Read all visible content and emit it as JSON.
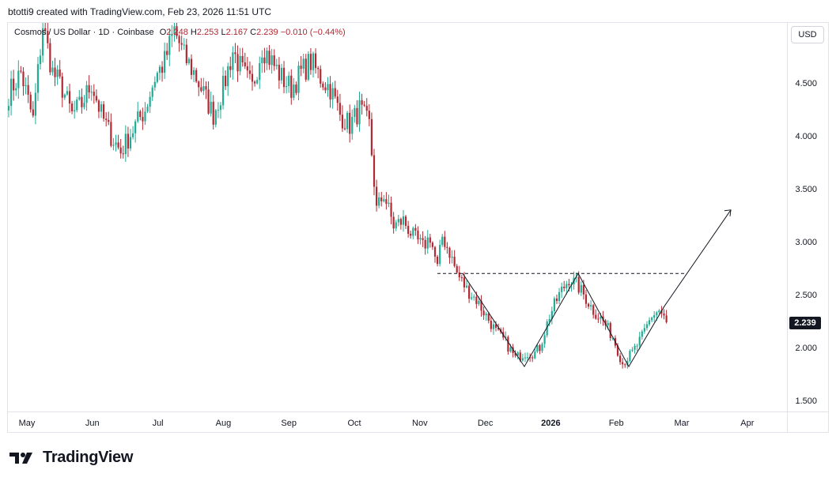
{
  "header": {
    "attribution": "btotti9 created with TradingView.com, Feb 23, 2026 11:51 UTC"
  },
  "legend": {
    "symbol": "Cosmos / US Dollar · 1D · Coinbase",
    "open_label": "O",
    "open": "2.248",
    "high_label": "H",
    "high": "2.253",
    "low_label": "L",
    "low": "2.167",
    "close_label": "C",
    "close": "2.239",
    "change": "−0.010 (−0.44%)"
  },
  "currency_button": "USD",
  "last_price": "2.239",
  "brand": {
    "name": "TradingView"
  },
  "colors": {
    "up": "#22ab94",
    "down": "#b22833",
    "axis_text": "#131722",
    "drawing": "#131722"
  },
  "chart_data": {
    "type": "candlestick",
    "title": "Cosmos / US Dollar · 1D · Coinbase",
    "price_axis": {
      "ticks": [
        1.5,
        2.0,
        2.5,
        3.0,
        3.5,
        4.0,
        4.5
      ],
      "tick_labels": [
        "1.500",
        "2.000",
        "2.500",
        "3.000",
        "3.500",
        "4.000",
        "4.500"
      ]
    },
    "time_axis": {
      "labels": [
        "May",
        "Jun",
        "Jul",
        "Aug",
        "Sep",
        "Oct",
        "Nov",
        "Dec",
        "2026",
        "Feb",
        "Mar",
        "Apr"
      ],
      "bold": [
        "2026"
      ]
    },
    "anchors": [
      [
        0,
        4.4
      ],
      [
        5,
        4.6
      ],
      [
        10,
        4.15
      ],
      [
        14,
        5.05
      ],
      [
        18,
        4.6
      ],
      [
        22,
        4.45
      ],
      [
        26,
        4.2
      ],
      [
        30,
        4.3
      ],
      [
        34,
        4.5
      ],
      [
        38,
        4.2
      ],
      [
        42,
        4.0
      ],
      [
        46,
        3.85
      ],
      [
        52,
        4.1
      ],
      [
        56,
        4.25
      ],
      [
        60,
        4.55
      ],
      [
        64,
        4.7
      ],
      [
        68,
        5.0
      ],
      [
        72,
        4.75
      ],
      [
        76,
        4.6
      ],
      [
        80,
        4.4
      ],
      [
        84,
        4.2
      ],
      [
        88,
        4.45
      ],
      [
        92,
        4.8
      ],
      [
        96,
        4.6
      ],
      [
        100,
        4.45
      ],
      [
        104,
        4.85
      ],
      [
        108,
        4.7
      ],
      [
        112,
        4.55
      ],
      [
        116,
        4.45
      ],
      [
        120,
        4.6
      ],
      [
        124,
        4.7
      ],
      [
        128,
        4.55
      ],
      [
        132,
        4.45
      ],
      [
        136,
        4.2
      ],
      [
        140,
        4.1
      ],
      [
        144,
        4.25
      ],
      [
        148,
        4.1
      ],
      [
        151,
        3.3
      ],
      [
        154,
        3.45
      ],
      [
        158,
        3.15
      ],
      [
        162,
        3.2
      ],
      [
        166,
        3.05
      ],
      [
        170,
        2.95
      ],
      [
        173,
        3.05
      ],
      [
        176,
        2.75
      ],
      [
        178,
        3.05
      ],
      [
        181,
        2.9
      ],
      [
        184,
        2.7
      ],
      [
        188,
        2.55
      ],
      [
        192,
        2.45
      ],
      [
        196,
        2.3
      ],
      [
        200,
        2.15
      ],
      [
        204,
        2.05
      ],
      [
        208,
        1.9
      ],
      [
        212,
        1.95
      ],
      [
        216,
        1.95
      ],
      [
        218,
        2.0
      ],
      [
        222,
        2.3
      ],
      [
        226,
        2.5
      ],
      [
        230,
        2.65
      ],
      [
        233,
        2.6
      ],
      [
        236,
        2.5
      ],
      [
        240,
        2.35
      ],
      [
        244,
        2.25
      ],
      [
        248,
        2.1
      ],
      [
        252,
        1.85
      ],
      [
        256,
        1.95
      ],
      [
        260,
        2.1
      ],
      [
        264,
        2.3
      ],
      [
        267,
        2.35
      ],
      [
        270,
        2.239
      ]
    ],
    "last_close": 2.239,
    "drawings": [
      {
        "kind": "dashed-horizontal",
        "label": "neckline",
        "price": 2.7
      },
      {
        "kind": "polyline",
        "label": "pattern-path",
        "points_price": [
          2.7,
          1.82,
          2.7,
          1.82,
          2.39,
          3.3
        ]
      }
    ]
  }
}
